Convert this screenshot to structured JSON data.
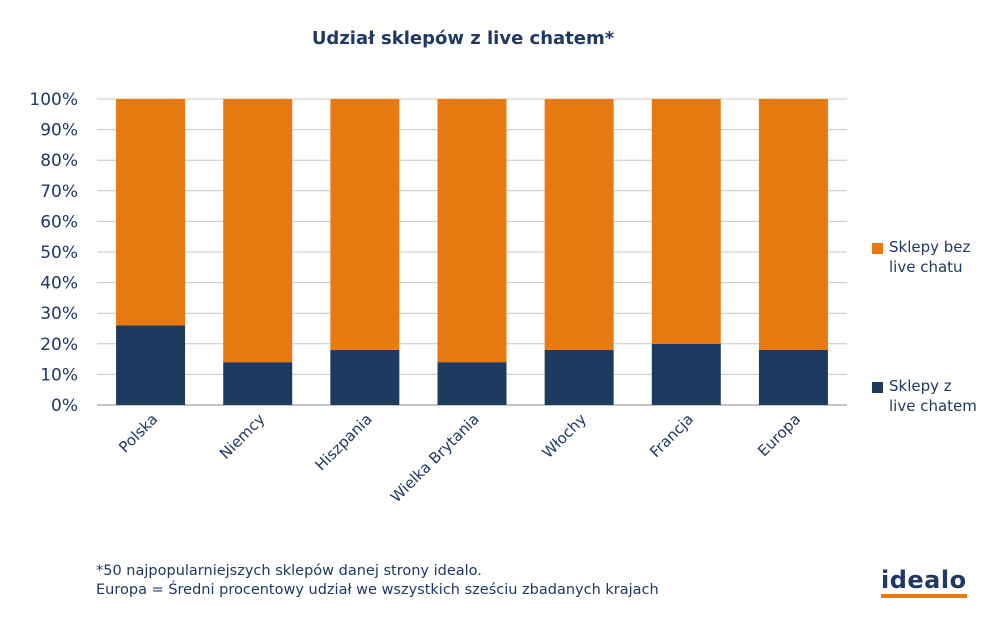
{
  "chart_data": {
    "type": "bar",
    "stacked": true,
    "title": "Udział sklepów z live chatem*",
    "categories": [
      "Polska",
      "Niemcy",
      "Hiszpania",
      "Wielka Brytania",
      "Włochy",
      "Francja",
      "Europa"
    ],
    "series": [
      {
        "name": "Sklepy z live chatem",
        "color": "#1d3a5f",
        "values": [
          26,
          14,
          18,
          14,
          18,
          20,
          18
        ]
      },
      {
        "name": "Sklepy bez live chatu",
        "color": "#e97a12",
        "values": [
          74,
          86,
          82,
          86,
          82,
          80,
          82
        ]
      }
    ],
    "yticks": [
      "0%",
      "10%",
      "20%",
      "30%",
      "40%",
      "50%",
      "60%",
      "70%",
      "80%",
      "90%",
      "100%"
    ],
    "ylim": [
      0,
      100
    ],
    "grid": true,
    "xlabel": "",
    "ylabel": "",
    "legend_position": "right"
  },
  "legend": {
    "without_chat": [
      "Sklepy bez",
      "live chatu"
    ],
    "with_chat": [
      "Sklepy z",
      "live chatem"
    ]
  },
  "footnote": {
    "line1": "*50 najpopularniejszych sklepów danej strony idealo.",
    "line2": "Europa = Średni procentowy udział we wszystkich sześciu zbadanych krajach"
  },
  "logo": {
    "text": "idealo"
  },
  "colors": {
    "accent_orange": "#e97a12",
    "navy": "#1d3a5f",
    "text": "#1f3864",
    "grid": "#c8c8c8"
  }
}
